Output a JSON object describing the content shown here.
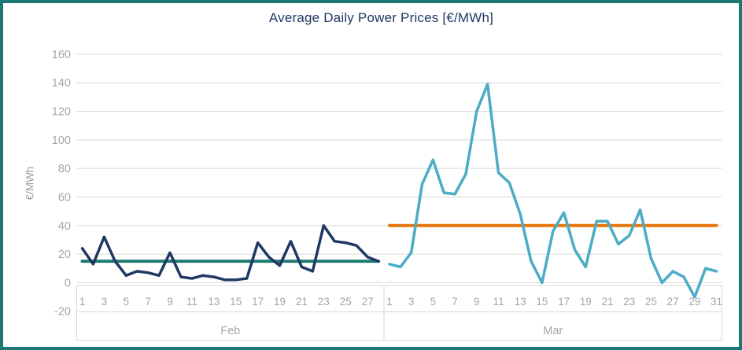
{
  "colors": {
    "frame_border": "#1D7874",
    "title_text": "#1F3864",
    "gridline": "#D9D9D9",
    "axis_text": "#A6A6A6",
    "feb_series": "#1F3864",
    "mar_series": "#4BACC6",
    "feb_average_line": "#1E7C72",
    "mar_average_line": "#E8760C"
  },
  "chart_data": {
    "type": "line",
    "title": "Average Daily Power Prices [€/MWh]",
    "ylabel": "€/MWh",
    "ylim": [
      -20,
      160
    ],
    "y_tick_step": 20,
    "y_ticks": [
      160,
      140,
      120,
      100,
      80,
      60,
      40,
      20,
      0,
      -20
    ],
    "grid": true,
    "legend": "none",
    "groups": [
      {
        "label": "Feb",
        "day_count": 28,
        "shown_day_ticks": [
          1,
          3,
          5,
          7,
          9,
          11,
          13,
          15,
          17,
          19,
          21,
          23,
          25,
          27
        ],
        "daily_values": [
          24,
          13,
          32,
          15,
          5,
          8,
          7,
          5,
          21,
          4,
          3,
          5,
          4,
          2,
          2,
          3,
          28,
          18,
          12,
          29,
          11,
          8,
          40,
          29,
          28,
          26,
          18,
          15
        ],
        "monthly_average": 15,
        "series_color": "#1F3864",
        "average_line_color": "#1E7C72"
      },
      {
        "label": "Mar",
        "day_count": 31,
        "shown_day_ticks": [
          1,
          3,
          5,
          7,
          9,
          11,
          13,
          15,
          17,
          19,
          21,
          23,
          25,
          27,
          29,
          31
        ],
        "daily_values": [
          13,
          11,
          21,
          69,
          86,
          63,
          62,
          76,
          120,
          139,
          77,
          70,
          48,
          15,
          0,
          36,
          49,
          23,
          11,
          43,
          43,
          27,
          33,
          51,
          17,
          0,
          8,
          4,
          -10,
          10,
          8
        ],
        "monthly_average": 40,
        "series_color": "#4BACC6",
        "average_line_color": "#E8760C"
      }
    ]
  }
}
